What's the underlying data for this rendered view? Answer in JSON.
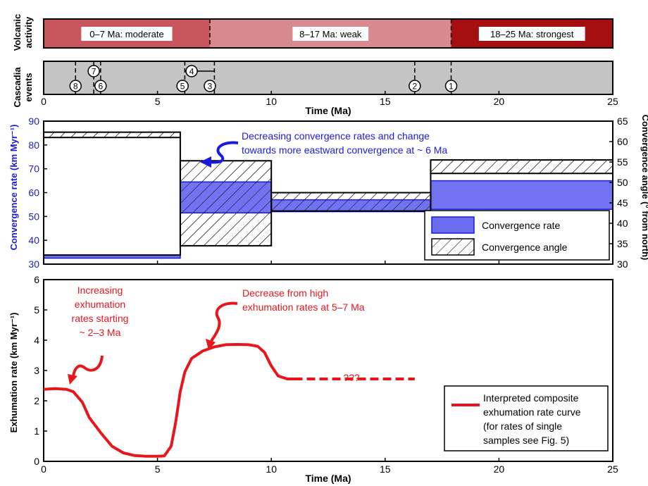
{
  "volcanic": {
    "label": "Volcanic activity",
    "periods": [
      {
        "start": 0,
        "end": 7.3,
        "label": "0–7 Ma: moderate",
        "color": "#c9565c"
      },
      {
        "start": 7.3,
        "end": 17.9,
        "label": "8–17 Ma: weak",
        "color": "#d98a8e"
      },
      {
        "start": 17.9,
        "end": 25,
        "label": "18–25 Ma: strongest",
        "color": "#a50f12"
      }
    ],
    "boundaries": [
      7.3,
      17.9
    ]
  },
  "cascadia": {
    "label": "Cascadia events",
    "background": "#c4c4c4",
    "events": [
      {
        "id": "1",
        "x": 17.9,
        "row": "low"
      },
      {
        "id": "2",
        "x": 16.3,
        "row": "low"
      },
      {
        "id": "3",
        "x": 7.3,
        "row": "low"
      },
      {
        "id": "4",
        "x": 6.5,
        "row": "high",
        "range": [
          6.2,
          7.5
        ]
      },
      {
        "id": "5",
        "x": 6.1,
        "row": "low"
      },
      {
        "id": "6",
        "x": 2.5,
        "row": "low"
      },
      {
        "id": "7",
        "x": 2.2,
        "row": "high",
        "range": [
          2.2,
          2.5
        ]
      },
      {
        "id": "8",
        "x": 1.4,
        "row": "low"
      }
    ],
    "lines": [
      1.4,
      2.2,
      2.5,
      6.2,
      7.5,
      16.3,
      17.9
    ],
    "xlabel": "Time (Ma)",
    "ticks": [
      "0",
      "5",
      "10",
      "15",
      "20",
      "25"
    ]
  },
  "convergence": {
    "ylabel_left": "Convergence rate (km Myr⁻¹)",
    "ylabel_right": "Convergence angle (° from north)",
    "left_ticks": [
      "30",
      "40",
      "50",
      "60",
      "70",
      "80",
      "90"
    ],
    "right_ticks": [
      "30",
      "35",
      "40",
      "45",
      "50",
      "55",
      "60",
      "65"
    ],
    "annotation": [
      "Decreasing convergence rates and change",
      "towards more eastward convergence at ~ 6 Ma"
    ],
    "legend": {
      "rate": "Convergence rate",
      "angle": "Convergence angle"
    },
    "rate_color": "#6b6bf0",
    "label_color": "#1a1adf"
  },
  "exhumation": {
    "ylabel": "Exhumation rate (km Myr⁻¹)",
    "xlabel": "Time (Ma)",
    "y_ticks": [
      "0",
      "1",
      "2",
      "3",
      "4",
      "5",
      "6"
    ],
    "x_ticks": [
      "0",
      "5",
      "10",
      "15",
      "20",
      "25"
    ],
    "annotation_left": [
      "Increasing",
      "exhumation",
      "rates starting",
      "~ 2–3 Ma"
    ],
    "annotation_right": [
      "Decrease from high",
      "exhumation rates at 5–7 Ma"
    ],
    "question": "???",
    "legend": [
      "Interpreted composite",
      "exhumation rate curve",
      "(for rates of single",
      "samples see Fig. 5)"
    ],
    "color": "#e8161b"
  },
  "chart_data": [
    {
      "type": "bar",
      "title": "",
      "xlabel": "Time (Ma)",
      "ylabel": "Convergence rate (km Myr⁻¹)",
      "y2label": "Convergence angle (° from north)",
      "xlim": [
        0,
        25
      ],
      "ylim": [
        30,
        90
      ],
      "y2lim": [
        30,
        65
      ],
      "series": [
        {
          "name": "Convergence rate",
          "segments": [
            {
              "x": [
                0,
                6
              ],
              "y": [
                32.5,
                33.8
              ]
            },
            {
              "x": [
                6,
                10
              ],
              "y": [
                51.5,
                64.5
              ]
            },
            {
              "x": [
                10,
                17
              ],
              "y": [
                52,
                57
              ]
            },
            {
              "x": [
                17,
                25
              ],
              "y": [
                53,
                65
              ]
            }
          ]
        },
        {
          "name": "Convergence angle",
          "segments": [
            {
              "x": [
                0,
                6
              ],
              "y": [
                61,
                62.3
              ]
            },
            {
              "x": [
                6,
                10
              ],
              "y": [
                34.5,
                55.3
              ]
            },
            {
              "x": [
                10,
                17
              ],
              "y": [
                43,
                47.5
              ]
            },
            {
              "x": [
                17,
                25
              ],
              "y": [
                52.2,
                55.5
              ]
            }
          ]
        }
      ]
    },
    {
      "type": "line",
      "title": "",
      "xlabel": "Time (Ma)",
      "ylabel": "Exhumation rate (km Myr⁻¹)",
      "xlim": [
        0,
        25
      ],
      "ylim": [
        0,
        6
      ],
      "series": [
        {
          "name": "Interpreted composite exhumation rate curve",
          "style": "solid",
          "x": [
            0,
            0.5,
            1.0,
            1.3,
            1.7,
            2.0,
            2.5,
            3.0,
            3.5,
            4.0,
            4.5,
            5.0,
            5.3,
            5.6,
            5.8,
            6.0,
            6.2,
            6.5,
            7.0,
            7.5,
            8.0,
            8.5,
            9.0,
            9.4,
            9.7,
            10.0,
            10.3,
            10.7,
            11.0
          ],
          "y": [
            2.38,
            2.4,
            2.38,
            2.3,
            1.95,
            1.45,
            0.95,
            0.5,
            0.28,
            0.19,
            0.17,
            0.17,
            0.18,
            0.5,
            1.3,
            2.3,
            2.95,
            3.4,
            3.65,
            3.78,
            3.85,
            3.86,
            3.85,
            3.8,
            3.6,
            3.15,
            2.82,
            2.72,
            2.72
          ]
        },
        {
          "name": "",
          "style": "dashed",
          "x": [
            11.0,
            16.3
          ],
          "y": [
            2.72,
            2.72
          ]
        }
      ]
    }
  ]
}
